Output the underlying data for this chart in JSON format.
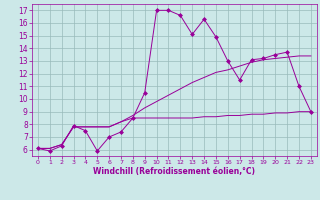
{
  "line1_x": [
    0,
    1,
    2,
    3,
    4,
    5,
    6,
    7,
    8,
    9,
    10,
    11,
    12,
    13,
    14,
    15,
    16,
    17,
    18,
    19,
    20,
    21,
    22,
    23
  ],
  "line1_y": [
    6.1,
    5.9,
    6.3,
    7.9,
    7.5,
    5.9,
    7.0,
    7.4,
    8.5,
    10.5,
    17.0,
    17.0,
    16.6,
    15.1,
    16.3,
    14.9,
    13.0,
    11.5,
    13.1,
    13.2,
    13.5,
    13.7,
    11.0,
    9.0
  ],
  "line2_x": [
    0,
    1,
    2,
    3,
    4,
    5,
    6,
    7,
    8,
    9,
    10,
    11,
    12,
    13,
    14,
    15,
    16,
    17,
    18,
    19,
    20,
    21,
    22,
    23
  ],
  "line2_y": [
    6.1,
    6.1,
    6.4,
    7.8,
    7.8,
    7.8,
    7.8,
    8.2,
    8.7,
    9.3,
    9.8,
    10.3,
    10.8,
    11.3,
    11.7,
    12.1,
    12.3,
    12.6,
    12.9,
    13.1,
    13.2,
    13.3,
    13.4,
    13.4
  ],
  "line3_x": [
    0,
    1,
    2,
    3,
    4,
    5,
    6,
    7,
    8,
    9,
    10,
    11,
    12,
    13,
    14,
    15,
    16,
    17,
    18,
    19,
    20,
    21,
    22,
    23
  ],
  "line3_y": [
    6.1,
    6.1,
    6.4,
    7.8,
    7.8,
    7.8,
    7.8,
    8.2,
    8.5,
    8.5,
    8.5,
    8.5,
    8.5,
    8.5,
    8.6,
    8.6,
    8.7,
    8.7,
    8.8,
    8.8,
    8.9,
    8.9,
    9.0,
    9.0
  ],
  "line_color": "#990099",
  "bg_color": "#cce8e8",
  "grid_color": "#99bbbb",
  "xlabel": "Windchill (Refroidissement éolien,°C)",
  "xlim": [
    -0.5,
    23.5
  ],
  "ylim": [
    5.5,
    17.5
  ],
  "xticks": [
    0,
    1,
    2,
    3,
    4,
    5,
    6,
    7,
    8,
    9,
    10,
    11,
    12,
    13,
    14,
    15,
    16,
    17,
    18,
    19,
    20,
    21,
    22,
    23
  ],
  "yticks": [
    6,
    7,
    8,
    9,
    10,
    11,
    12,
    13,
    14,
    15,
    16,
    17
  ],
  "marker": "D",
  "markersize": 2.0,
  "linewidth": 0.7
}
